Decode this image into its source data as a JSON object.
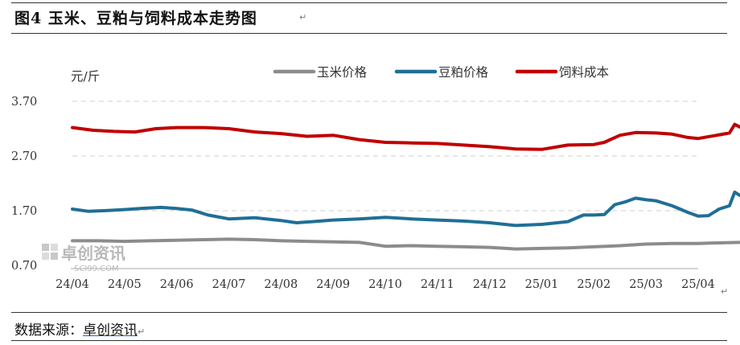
{
  "figure_title": "图4 玉米、豆粕与饲料成本走势图",
  "source_label": "数据来源：",
  "source_name": "卓创资讯",
  "watermark": {
    "brand": "卓创资讯",
    "site": "SCI99.COM"
  },
  "chart_data": {
    "type": "line",
    "title": "",
    "unit_label": "元/斤",
    "xlabel": "",
    "ylabel": "元/斤",
    "ylim": [
      0.7,
      3.7
    ],
    "yticks": [
      0.7,
      1.7,
      2.7,
      3.7
    ],
    "grid": "dashed-horizontal",
    "legend": "top",
    "x_labels": [
      "24/04",
      "24/05",
      "24/06",
      "24/07",
      "24/08",
      "24/09",
      "24/10",
      "24/11",
      "24/12",
      "25/01",
      "25/02",
      "25/03",
      "25/04"
    ],
    "series": [
      {
        "name": "玉米价格",
        "color": "#8c8c8c",
        "points": [
          [
            0,
            1.15
          ],
          [
            0.5,
            1.15
          ],
          [
            1,
            1.14
          ],
          [
            1.5,
            1.15
          ],
          [
            2,
            1.16
          ],
          [
            2.5,
            1.17
          ],
          [
            3,
            1.18
          ],
          [
            3.5,
            1.17
          ],
          [
            4,
            1.15
          ],
          [
            4.5,
            1.14
          ],
          [
            5,
            1.13
          ],
          [
            5.5,
            1.12
          ],
          [
            6,
            1.05
          ],
          [
            6.5,
            1.06
          ],
          [
            7,
            1.05
          ],
          [
            7.5,
            1.04
          ],
          [
            8,
            1.03
          ],
          [
            8.5,
            1.0
          ],
          [
            9,
            1.01
          ],
          [
            9.5,
            1.02
          ],
          [
            10,
            1.04
          ],
          [
            10.5,
            1.06
          ],
          [
            11,
            1.09
          ],
          [
            11.5,
            1.1
          ],
          [
            12,
            1.1
          ],
          [
            12.3,
            1.11
          ],
          [
            12.8,
            1.12
          ]
        ]
      },
      {
        "name": "豆粕价格",
        "color": "#1f6f96",
        "points": [
          [
            0,
            1.73
          ],
          [
            0.3,
            1.69
          ],
          [
            0.6,
            1.7
          ],
          [
            1,
            1.72
          ],
          [
            1.3,
            1.74
          ],
          [
            1.7,
            1.76
          ],
          [
            2,
            1.74
          ],
          [
            2.3,
            1.71
          ],
          [
            2.6,
            1.62
          ],
          [
            3,
            1.55
          ],
          [
            3.5,
            1.57
          ],
          [
            4,
            1.52
          ],
          [
            4.3,
            1.48
          ],
          [
            4.6,
            1.5
          ],
          [
            5,
            1.53
          ],
          [
            5.5,
            1.55
          ],
          [
            6,
            1.58
          ],
          [
            6.5,
            1.55
          ],
          [
            7,
            1.53
          ],
          [
            7.5,
            1.51
          ],
          [
            8,
            1.48
          ],
          [
            8.5,
            1.43
          ],
          [
            9,
            1.45
          ],
          [
            9.5,
            1.5
          ],
          [
            9.8,
            1.62
          ],
          [
            10,
            1.62
          ],
          [
            10.2,
            1.63
          ],
          [
            10.4,
            1.81
          ],
          [
            10.6,
            1.86
          ],
          [
            10.8,
            1.93
          ],
          [
            11,
            1.9
          ],
          [
            11.2,
            1.88
          ],
          [
            11.5,
            1.79
          ],
          [
            11.8,
            1.67
          ],
          [
            12,
            1.6
          ],
          [
            12.2,
            1.61
          ],
          [
            12.4,
            1.73
          ],
          [
            12.6,
            1.79
          ],
          [
            12.7,
            2.04
          ],
          [
            12.8,
            1.98
          ]
        ]
      },
      {
        "name": "饲料成本",
        "color": "#c00000",
        "points": [
          [
            0,
            3.22
          ],
          [
            0.4,
            3.17
          ],
          [
            0.8,
            3.15
          ],
          [
            1.2,
            3.14
          ],
          [
            1.6,
            3.2
          ],
          [
            2,
            3.22
          ],
          [
            2.5,
            3.22
          ],
          [
            3,
            3.2
          ],
          [
            3.5,
            3.14
          ],
          [
            4,
            3.11
          ],
          [
            4.5,
            3.06
          ],
          [
            5,
            3.08
          ],
          [
            5.5,
            3.0
          ],
          [
            6,
            2.95
          ],
          [
            6.5,
            2.94
          ],
          [
            7,
            2.93
          ],
          [
            7.5,
            2.9
          ],
          [
            8,
            2.87
          ],
          [
            8.5,
            2.83
          ],
          [
            9,
            2.82
          ],
          [
            9.5,
            2.9
          ],
          [
            10,
            2.91
          ],
          [
            10.2,
            2.95
          ],
          [
            10.5,
            3.08
          ],
          [
            10.8,
            3.13
          ],
          [
            11.2,
            3.12
          ],
          [
            11.5,
            3.1
          ],
          [
            11.8,
            3.04
          ],
          [
            12,
            3.02
          ],
          [
            12.3,
            3.07
          ],
          [
            12.6,
            3.12
          ],
          [
            12.7,
            3.28
          ],
          [
            12.8,
            3.23
          ]
        ]
      }
    ]
  }
}
